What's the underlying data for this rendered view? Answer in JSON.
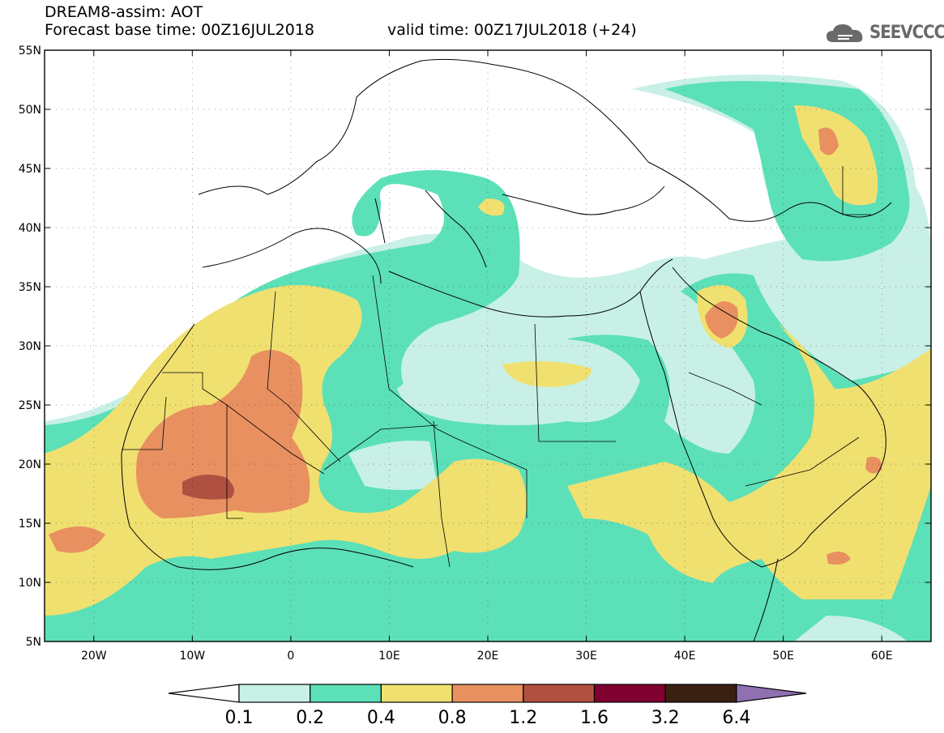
{
  "header": {
    "model_title": "DREAM8-assim: AOT",
    "base_time": "Forecast base time: 00Z16JUL2018",
    "valid_time": "valid time: 00Z17JUL2018 (+24)"
  },
  "logo": {
    "text": "SEEVCCC",
    "icon": "cloud-icon"
  },
  "map": {
    "lat_ticks": [
      "55N",
      "50N",
      "45N",
      "40N",
      "35N",
      "30N",
      "25N",
      "20N",
      "15N",
      "10N",
      "5N"
    ],
    "lon_ticks": [
      "20W",
      "10W",
      "0",
      "10E",
      "20E",
      "30E",
      "40E",
      "50E",
      "60E"
    ],
    "lon_range": [
      -25,
      65
    ],
    "lat_range": [
      5,
      55
    ],
    "variable": "Aerosol Optical Thickness"
  },
  "colorbar": {
    "levels": [
      "0.1",
      "0.2",
      "0.4",
      "0.8",
      "1.2",
      "1.6",
      "3.2",
      "6.4"
    ],
    "colors": [
      "#ffffff",
      "#c8f0e6",
      "#5ce0b8",
      "#f0e070",
      "#e89060",
      "#b05040",
      "#800030",
      "#3a2010",
      "#9070b0"
    ]
  },
  "colors": {
    "c01": "#c8f0e6",
    "c02": "#5ce0b8",
    "c04": "#f0e070",
    "c08": "#e89060",
    "c12": "#b05040",
    "c16": "#800030"
  }
}
